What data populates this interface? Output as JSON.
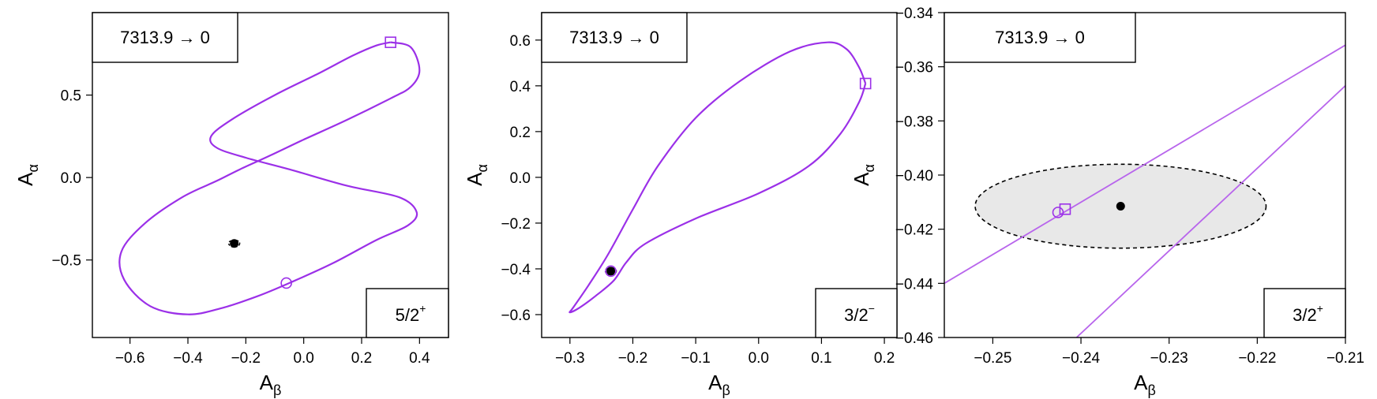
{
  "colors": {
    "curve": "#9b30e8",
    "curve_light": "#b865ec",
    "point": "#000000",
    "ellipse_fill": "#e8e8e8"
  },
  "chart_data": [
    {
      "type": "line",
      "xlabel": "Aβ",
      "ylabel": "Aα",
      "xlim": [
        -0.73,
        0.5
      ],
      "ylim": [
        -0.97,
        1.0
      ],
      "xticks": [
        -0.6,
        -0.4,
        -0.2,
        0.0,
        0.2,
        0.4
      ],
      "yticks": [
        -0.5,
        0.0,
        0.5
      ],
      "xtick_labels": [
        "−0.6",
        "−0.4",
        "−0.2",
        "0.0",
        "0.2",
        "0.4"
      ],
      "ytick_labels": [
        "−0.5",
        "0.0",
        "0.5"
      ],
      "transition_label": "7313.9 → 0",
      "spin_label": "5/2",
      "spin_parity": "+",
      "curve": [
        [
          0.3,
          0.82
        ],
        [
          0.37,
          0.79
        ],
        [
          0.4,
          0.65
        ],
        [
          0.37,
          0.55
        ],
        [
          0.3,
          0.48
        ],
        [
          0.15,
          0.35
        ],
        [
          0.0,
          0.23
        ],
        [
          -0.12,
          0.13
        ],
        [
          -0.22,
          0.05
        ],
        [
          -0.3,
          -0.02
        ],
        [
          -0.42,
          -0.12
        ],
        [
          -0.55,
          -0.28
        ],
        [
          -0.63,
          -0.45
        ],
        [
          -0.62,
          -0.62
        ],
        [
          -0.53,
          -0.78
        ],
        [
          -0.4,
          -0.83
        ],
        [
          -0.28,
          -0.79
        ],
        [
          -0.16,
          -0.72
        ],
        [
          -0.05,
          -0.64
        ],
        [
          0.1,
          -0.52
        ],
        [
          0.25,
          -0.38
        ],
        [
          0.36,
          -0.29
        ],
        [
          0.39,
          -0.21
        ],
        [
          0.33,
          -0.12
        ],
        [
          0.15,
          -0.05
        ],
        [
          -0.05,
          0.05
        ],
        [
          -0.2,
          0.12
        ],
        [
          -0.3,
          0.18
        ],
        [
          -0.32,
          0.25
        ],
        [
          -0.25,
          0.35
        ],
        [
          -0.1,
          0.5
        ],
        [
          0.05,
          0.63
        ],
        [
          0.17,
          0.74
        ],
        [
          0.25,
          0.8
        ],
        [
          0.3,
          0.82
        ]
      ],
      "marker_square": [
        0.3,
        0.82
      ],
      "marker_circle": [
        -0.06,
        -0.64
      ],
      "point": [
        -0.24,
        -0.4
      ],
      "ellipse": null
    },
    {
      "type": "line",
      "xlabel": "Aβ",
      "ylabel": "Aα",
      "xlim": [
        -0.345,
        0.22
      ],
      "ylim": [
        -0.7,
        0.72
      ],
      "xticks": [
        -0.3,
        -0.2,
        -0.1,
        0.0,
        0.1,
        0.2
      ],
      "yticks": [
        -0.6,
        -0.4,
        -0.2,
        0.0,
        0.2,
        0.4,
        0.6
      ],
      "xtick_labels": [
        "−0.3",
        "−0.2",
        "−0.1",
        "0.0",
        "0.1",
        "0.2"
      ],
      "ytick_labels": [
        "−0.6",
        "−0.4",
        "−0.2",
        "0.0",
        "0.2",
        "0.4",
        "0.6"
      ],
      "transition_label": "7313.9 → 0",
      "spin_label": "3/2",
      "spin_parity": "−",
      "curve": [
        [
          0.17,
          0.41
        ],
        [
          0.16,
          0.48
        ],
        [
          0.14,
          0.56
        ],
        [
          0.11,
          0.59
        ],
        [
          0.05,
          0.55
        ],
        [
          -0.03,
          0.42
        ],
        [
          -0.1,
          0.26
        ],
        [
          -0.16,
          0.05
        ],
        [
          -0.2,
          -0.14
        ],
        [
          -0.24,
          -0.34
        ],
        [
          -0.27,
          -0.47
        ],
        [
          -0.295,
          -0.57
        ],
        [
          -0.3,
          -0.59
        ],
        [
          -0.285,
          -0.57
        ],
        [
          -0.26,
          -0.52
        ],
        [
          -0.23,
          -0.45
        ],
        [
          -0.21,
          -0.37
        ],
        [
          -0.18,
          -0.29
        ],
        [
          -0.1,
          -0.18
        ],
        [
          0.0,
          -0.07
        ],
        [
          0.08,
          0.05
        ],
        [
          0.13,
          0.19
        ],
        [
          0.16,
          0.33
        ],
        [
          0.17,
          0.41
        ]
      ],
      "marker_square": [
        0.17,
        0.41
      ],
      "marker_circle": [
        -0.235,
        -0.41
      ],
      "point": [
        -0.235,
        -0.41
      ],
      "ellipse": null
    },
    {
      "type": "line",
      "xlabel": "Aβ",
      "ylabel": "Aα",
      "xlim": [
        -0.2555,
        -0.21
      ],
      "ylim": [
        -0.46,
        -0.34
      ],
      "xticks": [
        -0.25,
        -0.24,
        -0.23,
        -0.22,
        -0.21
      ],
      "yticks": [
        -0.46,
        -0.44,
        -0.42,
        -0.4,
        -0.38,
        -0.36,
        -0.34
      ],
      "xtick_labels": [
        "−0.25",
        "−0.24",
        "−0.23",
        "−0.22",
        "−0.21"
      ],
      "ytick_labels": [
        "−0.46",
        "−0.44",
        "−0.42",
        "−0.40",
        "−0.38",
        "−0.36",
        "−0.34"
      ],
      "transition_label": "7313.9 → 0",
      "spin_label": "3/2",
      "spin_parity": "+",
      "lines": [
        [
          [
            -0.2555,
            -0.44
          ],
          [
            -0.21,
            -0.352
          ]
        ],
        [
          [
            -0.2405,
            -0.46
          ],
          [
            -0.21,
            -0.367
          ]
        ]
      ],
      "marker_square": [
        -0.2418,
        -0.4126
      ],
      "marker_circle": [
        -0.2426,
        -0.4138
      ],
      "point": [
        -0.2355,
        -0.4115
      ],
      "ellipse": {
        "cx": -0.2355,
        "cy": -0.4115,
        "rx": 0.0165,
        "ry": 0.0155
      }
    }
  ]
}
